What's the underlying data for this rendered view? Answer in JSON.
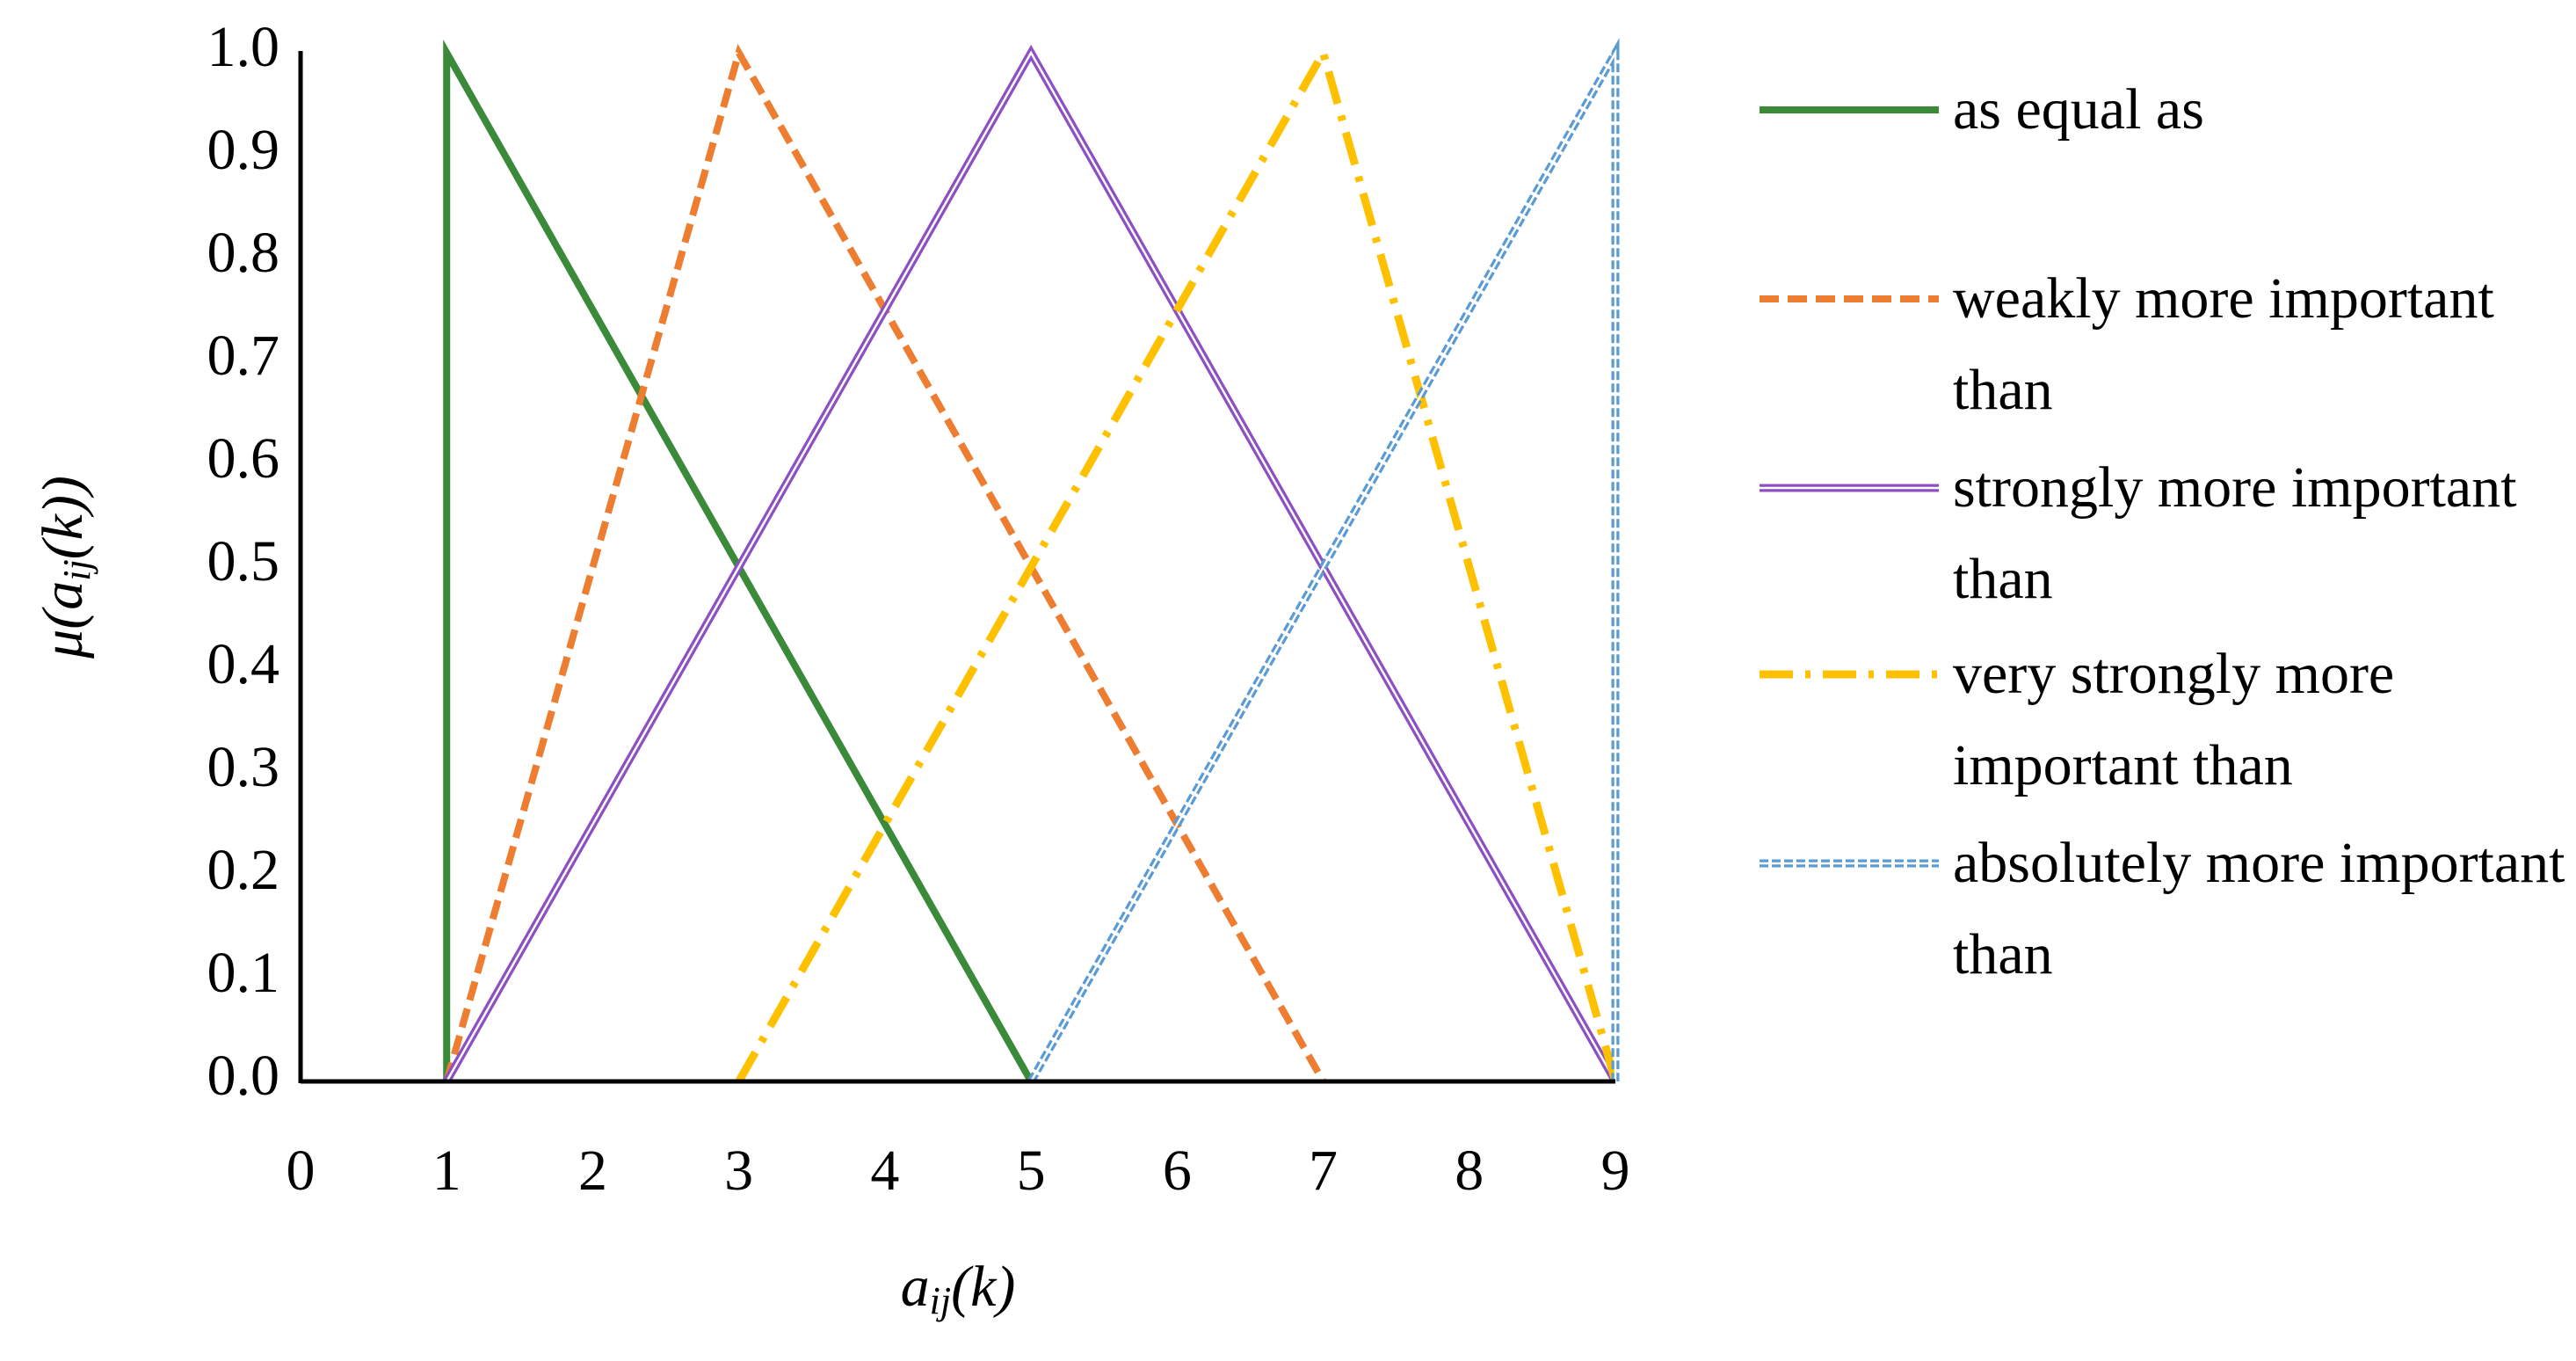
{
  "chart_data": {
    "type": "line",
    "ylabel": [
      "μ(a",
      "ij",
      "(k))"
    ],
    "xlabel": [
      "a",
      "ij",
      "(k)"
    ],
    "xlim": [
      0,
      9
    ],
    "xticks": [
      0,
      1,
      2,
      3,
      4,
      5,
      6,
      7,
      8,
      9
    ],
    "ylim": [
      0,
      1
    ],
    "yticks": [
      {
        "value": 0,
        "label": "0.0"
      },
      {
        "value": 0.1,
        "label": "0.1"
      },
      {
        "value": 0.2,
        "label": "0.2"
      },
      {
        "value": 0.3,
        "label": "0.3"
      },
      {
        "value": 0.4,
        "label": "0.4"
      },
      {
        "value": 0.5,
        "label": "0.5"
      },
      {
        "value": 0.6,
        "label": "0.6"
      },
      {
        "value": 0.7,
        "label": "0.7"
      },
      {
        "value": 0.8,
        "label": "0.8"
      },
      {
        "value": 0.9,
        "label": "0.9"
      },
      {
        "value": 1,
        "label": "1.0"
      }
    ],
    "grid": false,
    "legend": "right",
    "series": [
      {
        "name": "as equal as",
        "color": "#3a8a3a",
        "style": "solid",
        "x": [
          1,
          1,
          5
        ],
        "values": [
          0,
          1,
          0
        ]
      },
      {
        "name": "weakly more important than",
        "color": "#ed7d31",
        "style": "dashed",
        "x": [
          1,
          3,
          7
        ],
        "values": [
          0,
          1,
          0
        ]
      },
      {
        "name": "strongly more important than",
        "color": "#8e4fc2",
        "style": "double",
        "x": [
          1,
          5,
          9
        ],
        "values": [
          0,
          1,
          0
        ]
      },
      {
        "name": "very strongly more important than",
        "color": "#ffc000",
        "style": "dashdot",
        "x": [
          3,
          7,
          9
        ],
        "values": [
          0,
          1,
          0
        ]
      },
      {
        "name": "absolutely more important than",
        "color": "#5b9bd5",
        "style": "dotted",
        "x": [
          5,
          9,
          9
        ],
        "values": [
          0,
          1,
          0
        ]
      }
    ]
  }
}
